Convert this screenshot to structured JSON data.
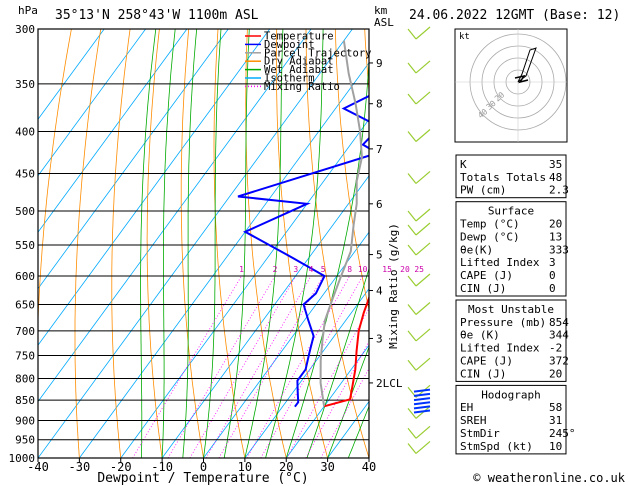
{
  "header": {
    "units_p": "hPa",
    "location": "35°13'N  258°43'W  1100m  ASL",
    "alt_units": "km",
    "alt_ref": "ASL",
    "valid": "24.06.2022  12GMT  (Base: 12)"
  },
  "axes": {
    "xlabel": "Dewpoint / Temperature (°C)",
    "x_ticks": [
      "-40",
      "-30",
      "-20",
      "-10",
      "0",
      "10",
      "20",
      "30",
      "40"
    ],
    "y_ticks": [
      "300",
      "350",
      "400",
      "450",
      "500",
      "550",
      "600",
      "650",
      "700",
      "750",
      "800",
      "850",
      "900",
      "950",
      "1000"
    ],
    "km_ticks": [
      "9",
      "8",
      "7",
      "6",
      "5",
      "4",
      "3",
      "2LCL"
    ],
    "mixing_ratio_label": "Mixing Ratio (g/kg)",
    "mixing_ratio_ticks": [
      "1",
      "2",
      "3",
      "4",
      "5",
      "8",
      "10",
      "15",
      "20",
      "25"
    ]
  },
  "legend": [
    {
      "label": "Temperature",
      "color": "#ff0000",
      "style": "solid"
    },
    {
      "label": "Dewpoint",
      "color": "#0000ff",
      "style": "solid"
    },
    {
      "label": "Parcel Trajectory",
      "color": "#a0a0a0",
      "style": "solid"
    },
    {
      "label": "Dry Adiabat",
      "color": "#ff8c00",
      "style": "solid"
    },
    {
      "label": "Wet Adiabat",
      "color": "#00aa00",
      "style": "solid"
    },
    {
      "label": "Isotherm",
      "color": "#00aaff",
      "style": "solid"
    },
    {
      "label": "Mixing Ratio",
      "color": "#ff00ff",
      "style": "dotted"
    }
  ],
  "chart_data": {
    "type": "line",
    "xlim": [
      -40,
      40
    ],
    "ylim": [
      1000,
      300
    ],
    "y_scale": "log",
    "skew": "skew-T",
    "series": [
      {
        "name": "Temperature",
        "color": "#ff0000",
        "points": [
          [
            20,
            865
          ],
          [
            25,
            848
          ],
          [
            24,
            830
          ],
          [
            21,
            780
          ],
          [
            18,
            740
          ],
          [
            15,
            700
          ],
          [
            13,
            665
          ],
          [
            11,
            625
          ],
          [
            9,
            590
          ],
          [
            8,
            555
          ],
          [
            5,
            520
          ],
          [
            3,
            490
          ],
          [
            0,
            460
          ],
          [
            -2,
            440
          ],
          [
            -7,
            410
          ],
          [
            -10,
            385
          ],
          [
            -13,
            360
          ],
          [
            -17,
            330
          ],
          [
            -22,
            300
          ]
        ]
      },
      {
        "name": "Dewpoint",
        "color": "#0000ff",
        "points": [
          [
            13,
            866
          ],
          [
            13,
            855
          ],
          [
            11,
            830
          ],
          [
            9,
            805
          ],
          [
            9,
            780
          ],
          [
            7,
            745
          ],
          [
            5,
            710
          ],
          [
            1,
            680
          ],
          [
            -3,
            650
          ],
          [
            -2,
            630
          ],
          [
            -3,
            600
          ],
          [
            -14,
            570
          ],
          [
            -30,
            530
          ],
          [
            -20,
            490
          ],
          [
            -38,
            480
          ],
          [
            -12,
            425
          ],
          [
            -17,
            415
          ],
          [
            -16,
            395
          ],
          [
            -28,
            375
          ],
          [
            -22,
            355
          ],
          [
            -27,
            335
          ],
          [
            -32,
            315
          ],
          [
            -32,
            300
          ]
        ]
      },
      {
        "name": "Parcel Trajectory",
        "color": "#a0a0a0",
        "points": [
          [
            20,
            865
          ],
          [
            15,
            810
          ],
          [
            11,
            760
          ],
          [
            8,
            720
          ],
          [
            5,
            680
          ],
          [
            3,
            640
          ],
          [
            1,
            600
          ],
          [
            -1,
            560
          ],
          [
            -5,
            520
          ],
          [
            -8,
            490
          ],
          [
            -12,
            460
          ],
          [
            -15,
            430
          ],
          [
            -20,
            400
          ],
          [
            -26,
            370
          ],
          [
            -33,
            340
          ],
          [
            -40,
            310
          ]
        ]
      }
    ],
    "isotherms_c": [
      -100,
      -90,
      -80,
      -70,
      -60,
      -50,
      -40,
      -30,
      -20,
      -10,
      0,
      10,
      20,
      30,
      40
    ],
    "dry_adiabats_c": [
      -40,
      -30,
      -20,
      -10,
      0,
      10,
      20,
      30,
      40,
      50,
      60,
      70,
      80,
      90,
      100
    ],
    "wet_adiabats_c": [
      -15,
      -10,
      -5,
      0,
      5,
      10,
      15,
      20,
      25,
      30,
      35
    ],
    "mixing_ratios_gkg": [
      1,
      2,
      3,
      4,
      5,
      8,
      10,
      15,
      20,
      25
    ]
  },
  "hodograph": {
    "label": "kt",
    "ring_labels": [
      "40",
      "30",
      "20"
    ]
  },
  "indices": [
    {
      "label": "K",
      "value": "35"
    },
    {
      "label": "Totals Totals",
      "value": "48"
    },
    {
      "label": "PW (cm)",
      "value": "2.3"
    }
  ],
  "surface": {
    "title": "Surface",
    "rows": [
      {
        "label": "Temp (°C)",
        "value": "20"
      },
      {
        "label": "Dewp (°C)",
        "value": "13"
      },
      {
        "label": "θe(K)",
        "value": "333"
      },
      {
        "label": "Lifted Index",
        "value": "3"
      },
      {
        "label": "CAPE (J)",
        "value": "0"
      },
      {
        "label": "CIN (J)",
        "value": "0"
      }
    ]
  },
  "most_unstable": {
    "title": "Most Unstable",
    "rows": [
      {
        "label": "Pressure (mb)",
        "value": "854"
      },
      {
        "label": "θe (K)",
        "value": "344"
      },
      {
        "label": "Lifted Index",
        "value": "-2"
      },
      {
        "label": "CAPE (J)",
        "value": "372"
      },
      {
        "label": "CIN (J)",
        "value": "20"
      }
    ]
  },
  "hodograph_table": {
    "title": "Hodograph",
    "rows": [
      {
        "label": "EH",
        "value": "58"
      },
      {
        "label": "SREH",
        "value": "31"
      },
      {
        "label": "StmDir",
        "value": "245°"
      },
      {
        "label": "StmSpd (kt)",
        "value": "10"
      }
    ]
  },
  "footer": {
    "copyright": "© weatheronline.co.uk"
  }
}
